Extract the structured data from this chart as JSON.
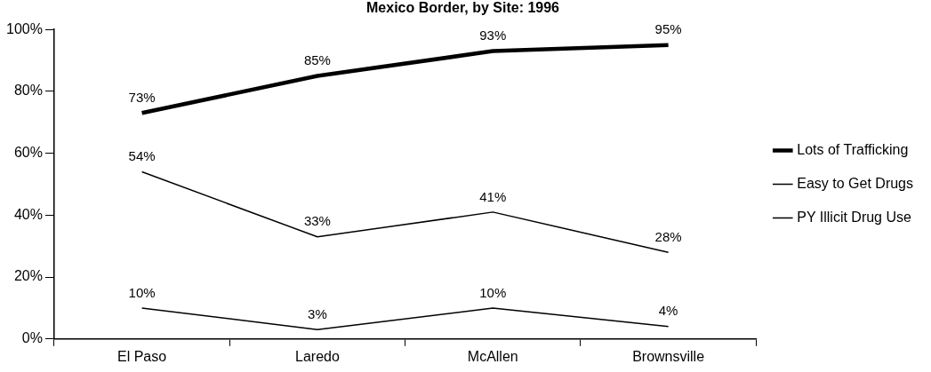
{
  "chart_data": {
    "type": "line",
    "title": "Mexico Border, by Site: 1996",
    "categories": [
      "El Paso",
      "Laredo",
      "McAllen",
      "Brownsville"
    ],
    "series": [
      {
        "name": "Lots of Trafficking",
        "color": "#000000",
        "values": [
          73,
          85,
          93,
          95
        ],
        "value_labels": [
          "73%",
          "85%",
          "93%",
          "95%"
        ]
      },
      {
        "name": "Easy to Get Drugs",
        "color": "#000000",
        "values": [
          54,
          33,
          41,
          28
        ],
        "value_labels": [
          "54%",
          "33%",
          "41%",
          "28%"
        ]
      },
      {
        "name": "PY Illicit Drug Use",
        "color": "#000000",
        "values": [
          10,
          3,
          10,
          4
        ],
        "value_labels": [
          "10%",
          "3%",
          "10%",
          "4%"
        ]
      }
    ],
    "ylim": [
      0,
      100
    ],
    "yticks": [
      {
        "value": 0,
        "label": "0%"
      },
      {
        "value": 20,
        "label": "20%"
      },
      {
        "value": 40,
        "label": "40%"
      },
      {
        "value": 60,
        "label": "60%"
      },
      {
        "value": 80,
        "label": "80%"
      },
      {
        "value": 100,
        "label": "100%"
      }
    ],
    "grid": false,
    "legend": "right",
    "marker": "none",
    "line_style": "solid"
  }
}
